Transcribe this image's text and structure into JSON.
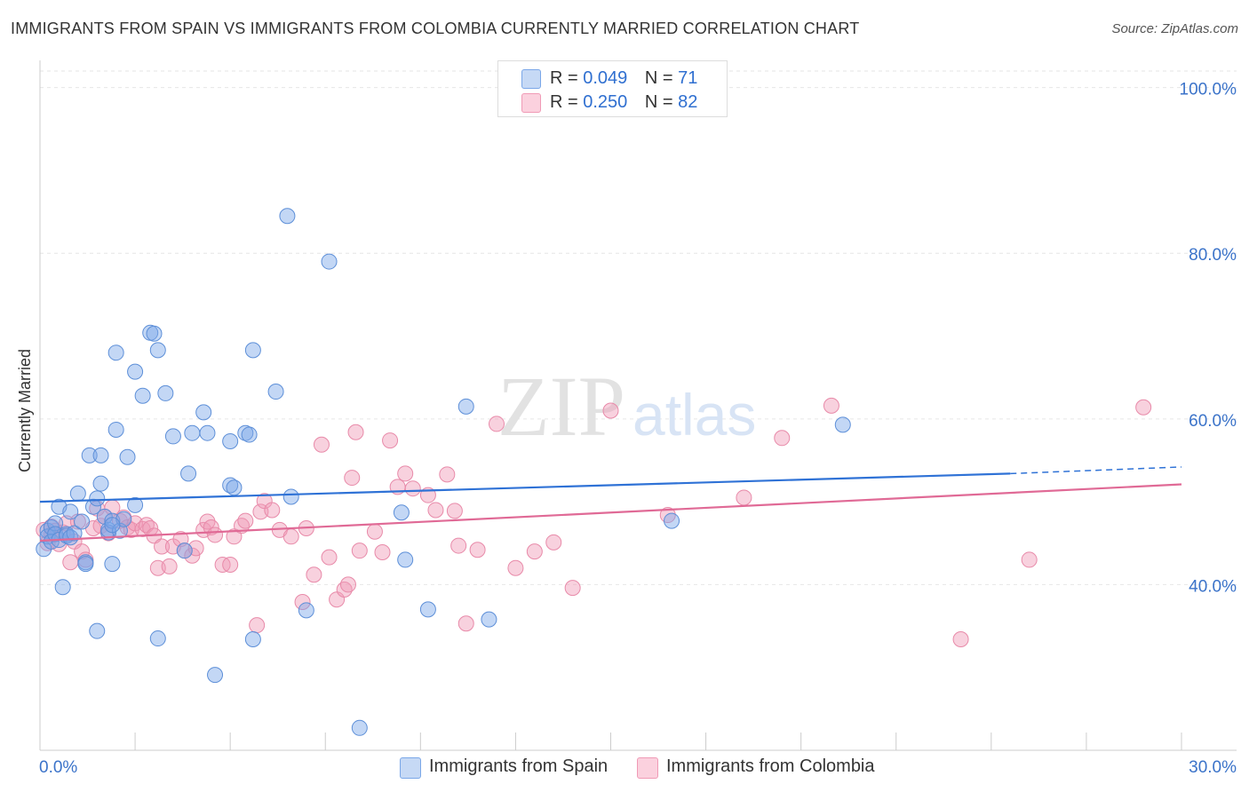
{
  "header": {
    "title": "IMMIGRANTS FROM SPAIN VS IMMIGRANTS FROM COLOMBIA CURRENTLY MARRIED CORRELATION CHART",
    "source": "Source: ZipAtlas.com"
  },
  "watermark": {
    "zip": "ZIP",
    "atlas": "atlas"
  },
  "legend": {
    "rows": [
      {
        "r_label": "R =",
        "r_value": "0.049",
        "n_label": "N =",
        "n_value": "71"
      },
      {
        "r_label": "R =",
        "r_value": "0.250",
        "n_label": "N =",
        "n_value": "82"
      }
    ]
  },
  "bottom_legend": {
    "spain": "Immigrants from Spain",
    "colombia": "Immigrants from Colombia"
  },
  "chart_data": {
    "type": "scatter",
    "title": "IMMIGRANTS FROM SPAIN VS IMMIGRANTS FROM COLOMBIA CURRENTLY MARRIED CORRELATION CHART",
    "xlabel": "",
    "ylabel": "Currently Married",
    "xlim": [
      0,
      30
    ],
    "ylim": [
      20,
      102
    ],
    "x_tick_labels": [
      "0.0%",
      "30.0%"
    ],
    "y_ticks": [
      40,
      60,
      80,
      100
    ],
    "y_tick_labels": [
      "40.0%",
      "60.0%",
      "80.0%",
      "100.0%"
    ],
    "grid": true,
    "colors": {
      "spain": "#7aa7e8",
      "colombia": "#f09ab6",
      "spain_line": "#2f72d6",
      "colombia_line": "#e06a96",
      "tick_label": "#3b73c9"
    },
    "series": [
      {
        "name": "Immigrants from Spain",
        "r": 0.049,
        "n": 71,
        "trend": {
          "x0": 0,
          "y0": 50.0,
          "x1": 25.5,
          "y1": 53.4,
          "dash_x1": 30,
          "dash_y1": 54.2
        },
        "points": [
          [
            0.1,
            44.3
          ],
          [
            0.2,
            46.5
          ],
          [
            0.2,
            45.8
          ],
          [
            0.3,
            46.9
          ],
          [
            0.3,
            45.2
          ],
          [
            0.4,
            47.4
          ],
          [
            0.4,
            46.1
          ],
          [
            0.5,
            49.4
          ],
          [
            0.5,
            45.4
          ],
          [
            0.6,
            39.7
          ],
          [
            0.7,
            46.1
          ],
          [
            0.7,
            45.9
          ],
          [
            0.8,
            48.8
          ],
          [
            0.8,
            45.7
          ],
          [
            0.9,
            46.2
          ],
          [
            1.0,
            51.0
          ],
          [
            1.1,
            47.6
          ],
          [
            1.2,
            42.7
          ],
          [
            1.2,
            42.5
          ],
          [
            1.3,
            55.6
          ],
          [
            1.4,
            49.4
          ],
          [
            1.5,
            50.4
          ],
          [
            1.5,
            34.4
          ],
          [
            1.6,
            55.6
          ],
          [
            1.6,
            52.2
          ],
          [
            1.7,
            48.2
          ],
          [
            1.8,
            46.3
          ],
          [
            1.8,
            46.6
          ],
          [
            1.9,
            47.7
          ],
          [
            1.9,
            42.5
          ],
          [
            2.0,
            58.7
          ],
          [
            2.0,
            68.0
          ],
          [
            2.1,
            46.5
          ],
          [
            2.2,
            47.9
          ],
          [
            2.3,
            55.4
          ],
          [
            2.5,
            49.6
          ],
          [
            2.5,
            65.7
          ],
          [
            2.7,
            62.8
          ],
          [
            2.9,
            70.4
          ],
          [
            3.0,
            70.3
          ],
          [
            3.1,
            68.3
          ],
          [
            3.1,
            33.5
          ],
          [
            3.3,
            63.1
          ],
          [
            3.5,
            57.9
          ],
          [
            3.8,
            44.1
          ],
          [
            3.9,
            53.4
          ],
          [
            4.0,
            58.3
          ],
          [
            4.3,
            60.8
          ],
          [
            4.4,
            58.3
          ],
          [
            4.6,
            29.1
          ],
          [
            5.0,
            57.3
          ],
          [
            5.0,
            52.0
          ],
          [
            5.1,
            51.7
          ],
          [
            5.4,
            58.3
          ],
          [
            5.5,
            58.1
          ],
          [
            5.6,
            68.3
          ],
          [
            5.6,
            33.4
          ],
          [
            6.2,
            63.3
          ],
          [
            6.5,
            84.5
          ],
          [
            6.6,
            50.6
          ],
          [
            7.0,
            36.9
          ],
          [
            7.6,
            79.0
          ],
          [
            8.4,
            22.7
          ],
          [
            9.5,
            48.7
          ],
          [
            9.6,
            43.0
          ],
          [
            10.2,
            37.0
          ],
          [
            11.2,
            61.5
          ],
          [
            11.8,
            35.8
          ],
          [
            16.6,
            47.7
          ],
          [
            21.1,
            59.3
          ],
          [
            1.9,
            47.2
          ]
        ]
      },
      {
        "name": "Immigrants from Colombia",
        "r": 0.25,
        "n": 82,
        "trend": {
          "x0": 0,
          "y0": 45.3,
          "x1": 30,
          "y1": 52.1
        },
        "points": [
          [
            0.1,
            46.6
          ],
          [
            0.2,
            45.0
          ],
          [
            0.3,
            46.0
          ],
          [
            0.3,
            47.0
          ],
          [
            0.4,
            46.5
          ],
          [
            0.5,
            44.9
          ],
          [
            0.6,
            46.3
          ],
          [
            0.7,
            47.4
          ],
          [
            0.8,
            42.7
          ],
          [
            0.9,
            45.2
          ],
          [
            1.0,
            47.6
          ],
          [
            1.1,
            44.0
          ],
          [
            1.2,
            43.0
          ],
          [
            1.4,
            46.8
          ],
          [
            1.5,
            49.2
          ],
          [
            1.6,
            47.1
          ],
          [
            1.7,
            48.2
          ],
          [
            1.8,
            46.2
          ],
          [
            1.9,
            49.3
          ],
          [
            2.1,
            47.7
          ],
          [
            2.2,
            48.1
          ],
          [
            2.3,
            46.9
          ],
          [
            2.4,
            46.6
          ],
          [
            2.5,
            47.4
          ],
          [
            2.7,
            46.7
          ],
          [
            2.8,
            47.2
          ],
          [
            2.9,
            46.8
          ],
          [
            3.0,
            45.9
          ],
          [
            3.1,
            42.0
          ],
          [
            3.2,
            44.6
          ],
          [
            3.4,
            42.2
          ],
          [
            3.5,
            44.6
          ],
          [
            3.7,
            45.5
          ],
          [
            3.8,
            44.1
          ],
          [
            4.0,
            43.5
          ],
          [
            4.1,
            44.4
          ],
          [
            4.3,
            46.6
          ],
          [
            4.4,
            47.6
          ],
          [
            4.5,
            46.9
          ],
          [
            4.6,
            46.0
          ],
          [
            4.8,
            42.4
          ],
          [
            5.0,
            42.4
          ],
          [
            5.1,
            45.8
          ],
          [
            5.3,
            47.1
          ],
          [
            5.4,
            47.7
          ],
          [
            5.7,
            35.1
          ],
          [
            5.8,
            48.8
          ],
          [
            5.9,
            50.1
          ],
          [
            6.1,
            49.0
          ],
          [
            6.3,
            46.6
          ],
          [
            6.6,
            45.8
          ],
          [
            6.9,
            37.9
          ],
          [
            7.0,
            46.8
          ],
          [
            7.2,
            41.2
          ],
          [
            7.4,
            56.9
          ],
          [
            7.6,
            43.3
          ],
          [
            7.8,
            38.2
          ],
          [
            8.0,
            39.4
          ],
          [
            8.1,
            40.0
          ],
          [
            8.2,
            52.9
          ],
          [
            8.3,
            58.4
          ],
          [
            8.4,
            44.1
          ],
          [
            8.8,
            46.4
          ],
          [
            9.0,
            43.9
          ],
          [
            9.2,
            57.4
          ],
          [
            9.4,
            51.8
          ],
          [
            9.6,
            53.4
          ],
          [
            9.8,
            51.6
          ],
          [
            10.2,
            50.8
          ],
          [
            10.4,
            49.0
          ],
          [
            10.7,
            53.3
          ],
          [
            10.9,
            48.9
          ],
          [
            11.0,
            44.7
          ],
          [
            11.2,
            35.3
          ],
          [
            11.5,
            44.2
          ],
          [
            12.0,
            59.4
          ],
          [
            12.5,
            42.0
          ],
          [
            13.0,
            44.0
          ],
          [
            13.5,
            45.1
          ],
          [
            14.0,
            39.6
          ],
          [
            15.0,
            61.0
          ],
          [
            16.5,
            48.4
          ]
        ],
        "extra_points": [
          [
            18.5,
            50.5
          ],
          [
            19.5,
            57.7
          ],
          [
            20.8,
            61.6
          ],
          [
            24.2,
            33.4
          ],
          [
            26.0,
            43.0
          ],
          [
            29.0,
            61.4
          ]
        ]
      }
    ]
  }
}
